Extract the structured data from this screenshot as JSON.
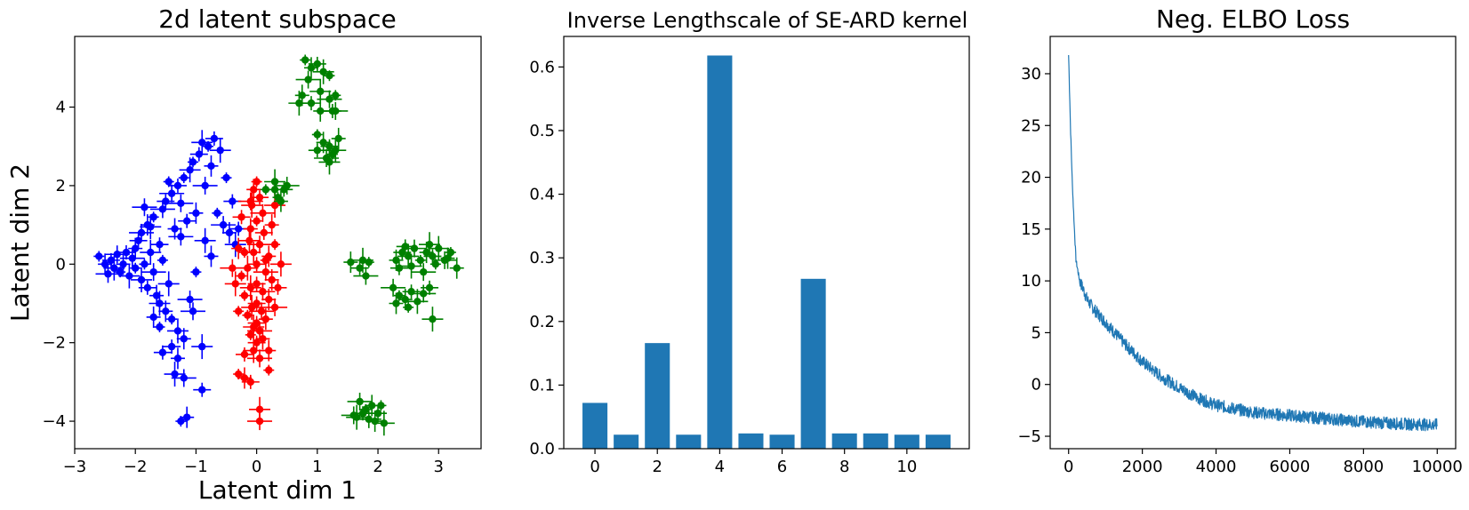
{
  "chart_data": [
    {
      "type": "scatter",
      "title": "2d latent subspace",
      "xlabel": "Latent dim 1",
      "ylabel": "Latent dim 2",
      "xlim": [
        -3,
        3.7
      ],
      "ylim": [
        -4.7,
        5.8
      ],
      "xticks": [
        -3,
        -2,
        -1,
        0,
        1,
        2,
        3
      ],
      "yticks": [
        -4,
        -2,
        0,
        2,
        4
      ],
      "error_bars": true,
      "grid": false,
      "legend": "none",
      "series": [
        {
          "color": "#0000ff",
          "points": [
            [
              -2.6,
              0.2
            ],
            [
              -2.5,
              0.0
            ],
            [
              -2.4,
              0.1
            ],
            [
              -2.35,
              -0.1
            ],
            [
              -2.3,
              0.25
            ],
            [
              -2.25,
              -0.2
            ],
            [
              -2.2,
              0.0
            ],
            [
              -2.15,
              0.3
            ],
            [
              -2.1,
              -0.3
            ],
            [
              -2.05,
              0.15
            ],
            [
              -2.0,
              -0.1
            ],
            [
              -2.0,
              0.4
            ],
            [
              -1.95,
              0.6
            ],
            [
              -1.9,
              -0.4
            ],
            [
              -1.9,
              0.8
            ],
            [
              -1.85,
              0.0
            ],
            [
              -1.8,
              1.0
            ],
            [
              -1.8,
              -0.6
            ],
            [
              -1.75,
              0.3
            ],
            [
              -1.7,
              -0.2
            ],
            [
              -1.7,
              1.2
            ],
            [
              -1.65,
              -0.8
            ],
            [
              -1.6,
              0.5
            ],
            [
              -1.6,
              -1.0
            ],
            [
              -1.55,
              1.4
            ],
            [
              -1.55,
              0.1
            ],
            [
              -1.5,
              -1.2
            ],
            [
              -1.5,
              1.6
            ],
            [
              -1.45,
              -0.5
            ],
            [
              -1.4,
              1.8
            ],
            [
              -1.4,
              -1.4
            ],
            [
              -1.35,
              0.9
            ],
            [
              -1.3,
              2.0
            ],
            [
              -1.3,
              -1.7
            ],
            [
              -1.25,
              0.7
            ],
            [
              -1.2,
              2.2
            ],
            [
              -1.2,
              -1.9
            ],
            [
              -1.15,
              1.1
            ],
            [
              -1.1,
              2.4
            ],
            [
              -1.1,
              -0.9
            ],
            [
              -1.05,
              2.6
            ],
            [
              -1.0,
              1.3
            ],
            [
              -0.95,
              2.8
            ],
            [
              -0.9,
              3.1
            ],
            [
              -0.85,
              2.0
            ],
            [
              -0.8,
              3.0
            ],
            [
              -0.75,
              2.5
            ],
            [
              -0.7,
              3.2
            ],
            [
              -0.6,
              2.9
            ],
            [
              -0.55,
              1.0
            ],
            [
              -0.5,
              2.2
            ],
            [
              -0.45,
              0.8
            ],
            [
              -0.4,
              1.6
            ],
            [
              -0.35,
              0.5
            ],
            [
              -1.85,
              1.45
            ],
            [
              -1.45,
              2.1
            ],
            [
              -1.3,
              -2.4
            ],
            [
              -1.4,
              -2.1
            ],
            [
              -1.35,
              -2.8
            ],
            [
              -1.2,
              -2.9
            ],
            [
              -1.25,
              -4.0
            ],
            [
              -1.15,
              -3.9
            ],
            [
              -0.9,
              -3.2
            ],
            [
              -0.9,
              -2.1
            ],
            [
              -1.05,
              -1.2
            ],
            [
              -1.0,
              -0.2
            ],
            [
              -0.75,
              0.2
            ],
            [
              -0.3,
              0.9
            ],
            [
              -0.85,
              0.6
            ],
            [
              -2.45,
              -0.25
            ],
            [
              -1.6,
              -1.6
            ],
            [
              -1.7,
              -1.35
            ],
            [
              -1.55,
              -2.25
            ],
            [
              -1.75,
              0.95
            ],
            [
              -1.25,
              1.55
            ],
            [
              -0.65,
              1.3
            ]
          ]
        },
        {
          "color": "#ff0000",
          "points": [
            [
              0.0,
              2.1
            ],
            [
              -0.05,
              1.9
            ],
            [
              0.05,
              1.7
            ],
            [
              -0.08,
              1.5
            ],
            [
              0.1,
              1.3
            ],
            [
              0.0,
              1.1
            ],
            [
              -0.1,
              0.9
            ],
            [
              0.12,
              0.8
            ],
            [
              -0.12,
              0.6
            ],
            [
              0.05,
              0.5
            ],
            [
              -0.2,
              0.3
            ],
            [
              0.2,
              0.2
            ],
            [
              0.0,
              0.0
            ],
            [
              -0.15,
              -0.1
            ],
            [
              0.15,
              -0.2
            ],
            [
              -0.25,
              -0.3
            ],
            [
              0.25,
              -0.4
            ],
            [
              0.0,
              -0.5
            ],
            [
              -0.1,
              -0.6
            ],
            [
              0.1,
              -0.7
            ],
            [
              -0.2,
              -0.8
            ],
            [
              0.2,
              -0.9
            ],
            [
              0.0,
              -1.0
            ],
            [
              -0.08,
              -1.1
            ],
            [
              0.08,
              -1.2
            ],
            [
              -0.15,
              -1.3
            ],
            [
              0.15,
              -1.4
            ],
            [
              0.0,
              -1.5
            ],
            [
              -0.05,
              -1.6
            ],
            [
              0.05,
              -1.7
            ],
            [
              -0.1,
              -1.8
            ],
            [
              0.1,
              -1.9
            ],
            [
              0.0,
              -2.0
            ],
            [
              -0.05,
              -2.2
            ],
            [
              0.05,
              -2.4
            ],
            [
              0.3,
              0.5
            ],
            [
              -0.3,
              0.4
            ],
            [
              0.35,
              -0.6
            ],
            [
              -0.35,
              -0.5
            ],
            [
              0.3,
              -1.1
            ],
            [
              -0.3,
              -1.2
            ],
            [
              0.25,
              1.0
            ],
            [
              -0.25,
              1.2
            ],
            [
              0.4,
              0.0
            ],
            [
              -0.4,
              -0.1
            ],
            [
              -0.3,
              -2.8
            ],
            [
              -0.2,
              -2.9
            ],
            [
              -0.1,
              -3.0
            ],
            [
              0.05,
              -3.7
            ],
            [
              0.05,
              -4.0
            ],
            [
              0.2,
              -2.7
            ],
            [
              0.2,
              -2.2
            ],
            [
              -0.2,
              -2.3
            ],
            [
              0.3,
              1.5
            ],
            [
              -0.1,
              1.6
            ],
            [
              0.15,
              0.1
            ],
            [
              -0.05,
              0.3
            ]
          ]
        },
        {
          "color": "#008000",
          "points": [
            [
              0.8,
              5.2
            ],
            [
              0.9,
              5.0
            ],
            [
              1.0,
              5.1
            ],
            [
              1.1,
              4.9
            ],
            [
              0.85,
              4.7
            ],
            [
              1.2,
              4.8
            ],
            [
              0.75,
              4.3
            ],
            [
              0.9,
              4.1
            ],
            [
              1.05,
              4.4
            ],
            [
              1.2,
              4.2
            ],
            [
              1.3,
              4.3
            ],
            [
              1.05,
              3.9
            ],
            [
              1.25,
              3.9
            ],
            [
              0.7,
              4.1
            ],
            [
              1.3,
              3.9
            ],
            [
              1.0,
              3.3
            ],
            [
              1.1,
              3.1
            ],
            [
              1.2,
              3.0
            ],
            [
              1.3,
              2.9
            ],
            [
              1.15,
              2.7
            ],
            [
              1.25,
              2.8
            ],
            [
              1.35,
              3.2
            ],
            [
              1.0,
              2.9
            ],
            [
              1.2,
              2.6
            ],
            [
              0.3,
              1.9
            ],
            [
              0.35,
              1.7
            ],
            [
              0.4,
              1.6
            ],
            [
              0.45,
              1.9
            ],
            [
              0.3,
              2.1
            ],
            [
              0.5,
              2.0
            ],
            [
              0.15,
              1.9
            ],
            [
              1.55,
              0.05
            ],
            [
              1.7,
              -0.1
            ],
            [
              1.75,
              0.1
            ],
            [
              1.8,
              -0.3
            ],
            [
              1.85,
              0.05
            ],
            [
              2.3,
              0.1
            ],
            [
              2.4,
              0.3
            ],
            [
              2.5,
              0.2
            ],
            [
              2.6,
              0.4
            ],
            [
              2.7,
              0.1
            ],
            [
              2.8,
              0.3
            ],
            [
              2.9,
              0.2
            ],
            [
              3.0,
              0.4
            ],
            [
              3.1,
              0.1
            ],
            [
              3.2,
              0.3
            ],
            [
              3.3,
              -0.1
            ],
            [
              2.35,
              -0.1
            ],
            [
              2.55,
              -0.05
            ],
            [
              2.75,
              -0.2
            ],
            [
              2.95,
              0.0
            ],
            [
              3.15,
              0.15
            ],
            [
              2.45,
              0.45
            ],
            [
              2.85,
              0.5
            ],
            [
              2.25,
              -0.6
            ],
            [
              2.35,
              -0.8
            ],
            [
              2.45,
              -0.9
            ],
            [
              2.55,
              -0.7
            ],
            [
              2.65,
              -0.95
            ],
            [
              2.75,
              -0.75
            ],
            [
              2.5,
              -1.1
            ],
            [
              2.3,
              -1.0
            ],
            [
              2.85,
              -0.6
            ],
            [
              2.9,
              -1.4
            ],
            [
              1.7,
              -3.5
            ],
            [
              1.8,
              -3.7
            ],
            [
              1.9,
              -3.6
            ],
            [
              2.0,
              -3.8
            ],
            [
              1.65,
              -3.9
            ],
            [
              1.85,
              -3.95
            ],
            [
              2.05,
              -3.6
            ],
            [
              1.95,
              -4.0
            ],
            [
              1.75,
              -3.8
            ],
            [
              2.1,
              -4.05
            ],
            [
              1.6,
              -3.85
            ]
          ]
        }
      ]
    },
    {
      "type": "bar",
      "title": "Inverse Lengthscale of SE-ARD kernel",
      "xlabel": "",
      "ylabel": "",
      "categories": [
        0,
        1,
        2,
        3,
        4,
        5,
        6,
        7,
        8,
        9,
        10,
        11
      ],
      "values": [
        0.072,
        0.022,
        0.166,
        0.022,
        0.618,
        0.024,
        0.022,
        0.267,
        0.024,
        0.024,
        0.022,
        0.022
      ],
      "color": "#1f77b4",
      "xlim": [
        -1.0,
        12.0
      ],
      "ylim": [
        0,
        0.648
      ],
      "xticks": [
        0,
        2,
        4,
        6,
        8,
        10
      ],
      "yticks": [
        0.0,
        0.1,
        0.2,
        0.3,
        0.4,
        0.5,
        0.6
      ],
      "ytick_labels": [
        "0.0",
        "0.1",
        "0.2",
        "0.3",
        "0.4",
        "0.5",
        "0.6"
      ],
      "grid": false,
      "legend": "none"
    },
    {
      "type": "line",
      "title": "Neg. ELBO Loss",
      "xlabel": "",
      "ylabel": "",
      "color": "#1f77b4",
      "noisy": true,
      "xlim": [
        -500,
        10500
      ],
      "ylim": [
        -6.2,
        33.6
      ],
      "xticks": [
        0,
        2000,
        4000,
        6000,
        8000,
        10000
      ],
      "yticks": [
        -5,
        0,
        5,
        10,
        15,
        20,
        25,
        30
      ],
      "x": [
        0,
        50,
        100,
        150,
        200,
        300,
        400,
        500,
        700,
        1000,
        1500,
        2000,
        2500,
        3000,
        3500,
        4000,
        5000,
        6000,
        7000,
        8000,
        9000,
        10000
      ],
      "y": [
        31.8,
        25.0,
        19.5,
        15.5,
        12.0,
        10.0,
        9.2,
        8.2,
        7.2,
        6.0,
        4.0,
        2.2,
        0.8,
        -0.3,
        -1.3,
        -2.0,
        -2.7,
        -3.0,
        -3.3,
        -3.6,
        -3.8,
        -3.9
      ],
      "noise_amplitude": 0.6,
      "grid": false,
      "legend": "none"
    }
  ]
}
